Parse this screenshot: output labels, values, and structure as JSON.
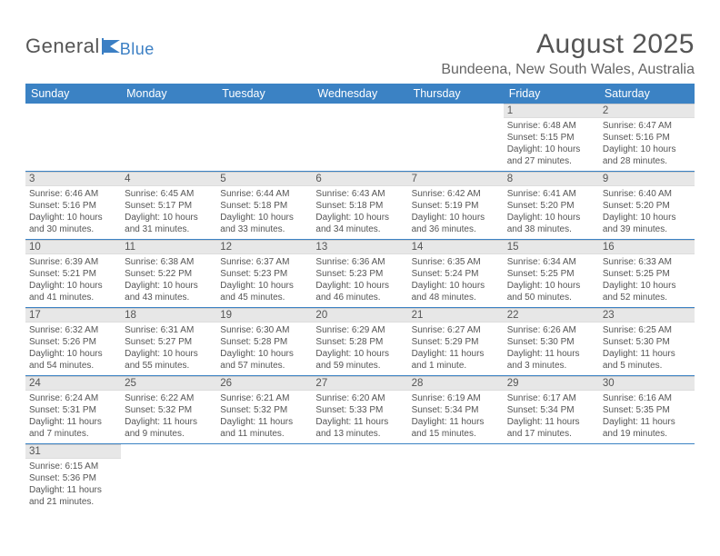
{
  "logo": {
    "text1": "General",
    "text2": "Blue"
  },
  "title": "August 2025",
  "location": "Bundeena, New South Wales, Australia",
  "colors": {
    "header_bg": "#3b82c4",
    "header_text": "#ffffff",
    "daynum_bg": "#e7e7e7",
    "divider": "#3b82c4",
    "title_color": "#555555",
    "body_text": "#555555"
  },
  "typography": {
    "title_fontsize": 30,
    "location_fontsize": 16,
    "dayheader_fontsize": 12.5,
    "daynum_fontsize": 11.5,
    "body_fontsize": 10
  },
  "day_headers": [
    "Sunday",
    "Monday",
    "Tuesday",
    "Wednesday",
    "Thursday",
    "Friday",
    "Saturday"
  ],
  "weeks": [
    [
      null,
      null,
      null,
      null,
      null,
      {
        "n": "1",
        "sunrise": "Sunrise: 6:48 AM",
        "sunset": "Sunset: 5:15 PM",
        "daylight": "Daylight: 10 hours and 27 minutes."
      },
      {
        "n": "2",
        "sunrise": "Sunrise: 6:47 AM",
        "sunset": "Sunset: 5:16 PM",
        "daylight": "Daylight: 10 hours and 28 minutes."
      }
    ],
    [
      {
        "n": "3",
        "sunrise": "Sunrise: 6:46 AM",
        "sunset": "Sunset: 5:16 PM",
        "daylight": "Daylight: 10 hours and 30 minutes."
      },
      {
        "n": "4",
        "sunrise": "Sunrise: 6:45 AM",
        "sunset": "Sunset: 5:17 PM",
        "daylight": "Daylight: 10 hours and 31 minutes."
      },
      {
        "n": "5",
        "sunrise": "Sunrise: 6:44 AM",
        "sunset": "Sunset: 5:18 PM",
        "daylight": "Daylight: 10 hours and 33 minutes."
      },
      {
        "n": "6",
        "sunrise": "Sunrise: 6:43 AM",
        "sunset": "Sunset: 5:18 PM",
        "daylight": "Daylight: 10 hours and 34 minutes."
      },
      {
        "n": "7",
        "sunrise": "Sunrise: 6:42 AM",
        "sunset": "Sunset: 5:19 PM",
        "daylight": "Daylight: 10 hours and 36 minutes."
      },
      {
        "n": "8",
        "sunrise": "Sunrise: 6:41 AM",
        "sunset": "Sunset: 5:20 PM",
        "daylight": "Daylight: 10 hours and 38 minutes."
      },
      {
        "n": "9",
        "sunrise": "Sunrise: 6:40 AM",
        "sunset": "Sunset: 5:20 PM",
        "daylight": "Daylight: 10 hours and 39 minutes."
      }
    ],
    [
      {
        "n": "10",
        "sunrise": "Sunrise: 6:39 AM",
        "sunset": "Sunset: 5:21 PM",
        "daylight": "Daylight: 10 hours and 41 minutes."
      },
      {
        "n": "11",
        "sunrise": "Sunrise: 6:38 AM",
        "sunset": "Sunset: 5:22 PM",
        "daylight": "Daylight: 10 hours and 43 minutes."
      },
      {
        "n": "12",
        "sunrise": "Sunrise: 6:37 AM",
        "sunset": "Sunset: 5:23 PM",
        "daylight": "Daylight: 10 hours and 45 minutes."
      },
      {
        "n": "13",
        "sunrise": "Sunrise: 6:36 AM",
        "sunset": "Sunset: 5:23 PM",
        "daylight": "Daylight: 10 hours and 46 minutes."
      },
      {
        "n": "14",
        "sunrise": "Sunrise: 6:35 AM",
        "sunset": "Sunset: 5:24 PM",
        "daylight": "Daylight: 10 hours and 48 minutes."
      },
      {
        "n": "15",
        "sunrise": "Sunrise: 6:34 AM",
        "sunset": "Sunset: 5:25 PM",
        "daylight": "Daylight: 10 hours and 50 minutes."
      },
      {
        "n": "16",
        "sunrise": "Sunrise: 6:33 AM",
        "sunset": "Sunset: 5:25 PM",
        "daylight": "Daylight: 10 hours and 52 minutes."
      }
    ],
    [
      {
        "n": "17",
        "sunrise": "Sunrise: 6:32 AM",
        "sunset": "Sunset: 5:26 PM",
        "daylight": "Daylight: 10 hours and 54 minutes."
      },
      {
        "n": "18",
        "sunrise": "Sunrise: 6:31 AM",
        "sunset": "Sunset: 5:27 PM",
        "daylight": "Daylight: 10 hours and 55 minutes."
      },
      {
        "n": "19",
        "sunrise": "Sunrise: 6:30 AM",
        "sunset": "Sunset: 5:28 PM",
        "daylight": "Daylight: 10 hours and 57 minutes."
      },
      {
        "n": "20",
        "sunrise": "Sunrise: 6:29 AM",
        "sunset": "Sunset: 5:28 PM",
        "daylight": "Daylight: 10 hours and 59 minutes."
      },
      {
        "n": "21",
        "sunrise": "Sunrise: 6:27 AM",
        "sunset": "Sunset: 5:29 PM",
        "daylight": "Daylight: 11 hours and 1 minute."
      },
      {
        "n": "22",
        "sunrise": "Sunrise: 6:26 AM",
        "sunset": "Sunset: 5:30 PM",
        "daylight": "Daylight: 11 hours and 3 minutes."
      },
      {
        "n": "23",
        "sunrise": "Sunrise: 6:25 AM",
        "sunset": "Sunset: 5:30 PM",
        "daylight": "Daylight: 11 hours and 5 minutes."
      }
    ],
    [
      {
        "n": "24",
        "sunrise": "Sunrise: 6:24 AM",
        "sunset": "Sunset: 5:31 PM",
        "daylight": "Daylight: 11 hours and 7 minutes."
      },
      {
        "n": "25",
        "sunrise": "Sunrise: 6:22 AM",
        "sunset": "Sunset: 5:32 PM",
        "daylight": "Daylight: 11 hours and 9 minutes."
      },
      {
        "n": "26",
        "sunrise": "Sunrise: 6:21 AM",
        "sunset": "Sunset: 5:32 PM",
        "daylight": "Daylight: 11 hours and 11 minutes."
      },
      {
        "n": "27",
        "sunrise": "Sunrise: 6:20 AM",
        "sunset": "Sunset: 5:33 PM",
        "daylight": "Daylight: 11 hours and 13 minutes."
      },
      {
        "n": "28",
        "sunrise": "Sunrise: 6:19 AM",
        "sunset": "Sunset: 5:34 PM",
        "daylight": "Daylight: 11 hours and 15 minutes."
      },
      {
        "n": "29",
        "sunrise": "Sunrise: 6:17 AM",
        "sunset": "Sunset: 5:34 PM",
        "daylight": "Daylight: 11 hours and 17 minutes."
      },
      {
        "n": "30",
        "sunrise": "Sunrise: 6:16 AM",
        "sunset": "Sunset: 5:35 PM",
        "daylight": "Daylight: 11 hours and 19 minutes."
      }
    ],
    [
      {
        "n": "31",
        "sunrise": "Sunrise: 6:15 AM",
        "sunset": "Sunset: 5:36 PM",
        "daylight": "Daylight: 11 hours and 21 minutes."
      },
      null,
      null,
      null,
      null,
      null,
      null
    ]
  ]
}
